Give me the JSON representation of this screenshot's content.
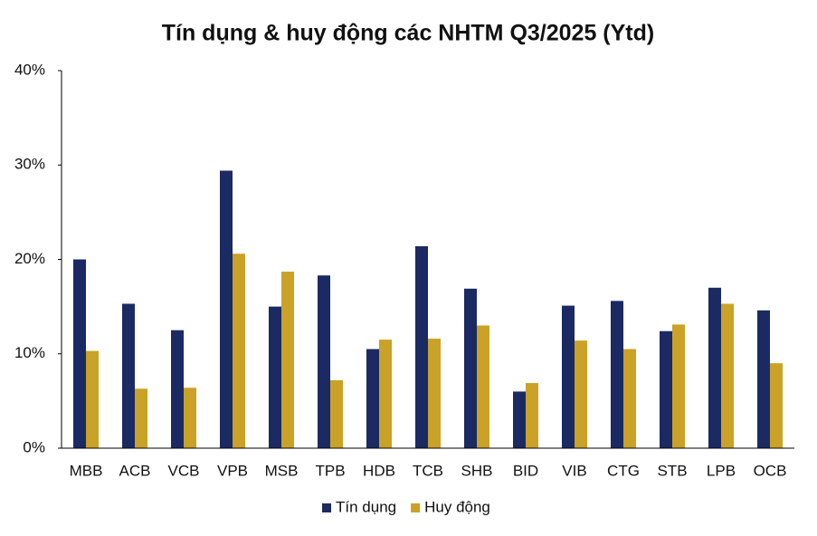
{
  "chart_data": {
    "type": "bar",
    "title": "Tín dụng & huy động các NHTM Q3/2025 (Ytd)",
    "categories": [
      "MBB",
      "ACB",
      "VCB",
      "VPB",
      "MSB",
      "TPB",
      "HDB",
      "TCB",
      "SHB",
      "BID",
      "VIB",
      "CTG",
      "STB",
      "LPB",
      "OCB"
    ],
    "series": [
      {
        "name": "Tín dụng",
        "color": "#1b2a63",
        "values": [
          20.0,
          15.3,
          12.5,
          29.4,
          15.0,
          18.3,
          10.5,
          21.4,
          16.9,
          6.0,
          15.1,
          15.6,
          12.4,
          17.0,
          14.6
        ]
      },
      {
        "name": "Huy động",
        "color": "#c9a227",
        "values": [
          10.3,
          6.3,
          6.4,
          20.6,
          18.7,
          7.2,
          11.5,
          11.6,
          13.0,
          6.9,
          11.4,
          10.5,
          13.1,
          15.3,
          9.0
        ]
      }
    ],
    "ylim": [
      0,
      40
    ],
    "yticks": [
      {
        "value": 0,
        "label": "0%"
      },
      {
        "value": 10,
        "label": "10%"
      },
      {
        "value": 20,
        "label": "20%"
      },
      {
        "value": 30,
        "label": "30%"
      },
      {
        "value": 40,
        "label": "40%"
      }
    ],
    "grid": false,
    "legend": "bottom"
  }
}
